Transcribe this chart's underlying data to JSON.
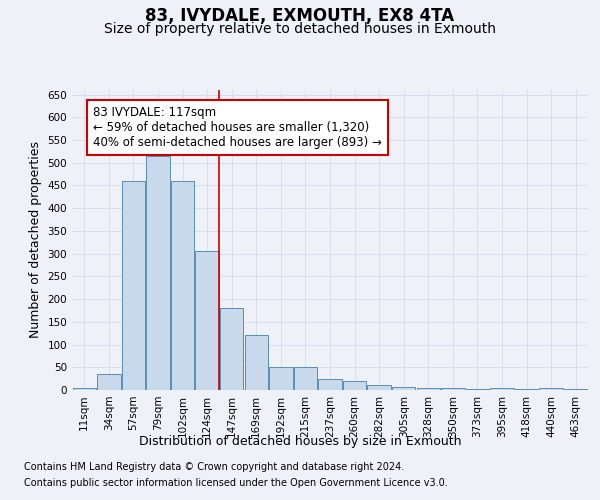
{
  "title": "83, IVYDALE, EXMOUTH, EX8 4TA",
  "subtitle": "Size of property relative to detached houses in Exmouth",
  "xlabel": "Distribution of detached houses by size in Exmouth",
  "ylabel": "Number of detached properties",
  "categories": [
    "11sqm",
    "34sqm",
    "57sqm",
    "79sqm",
    "102sqm",
    "124sqm",
    "147sqm",
    "169sqm",
    "192sqm",
    "215sqm",
    "237sqm",
    "260sqm",
    "282sqm",
    "305sqm",
    "328sqm",
    "350sqm",
    "373sqm",
    "395sqm",
    "418sqm",
    "440sqm",
    "463sqm"
  ],
  "values": [
    5,
    35,
    460,
    515,
    460,
    305,
    180,
    120,
    50,
    50,
    25,
    20,
    12,
    7,
    4,
    4,
    3,
    5,
    3,
    4,
    3
  ],
  "bar_color": "#c9d9ec",
  "bar_edge_color": "#5b8db8",
  "grid_color": "#d0d8e8",
  "background_color": "#eef2f8",
  "red_line_x": 5.5,
  "annotation_text": "83 IVYDALE: 117sqm\n← 59% of detached houses are smaller (1,320)\n40% of semi-detached houses are larger (893) →",
  "annotation_box_color": "#ffffff",
  "annotation_box_edge_color": "#cc0000",
  "ylim": [
    0,
    660
  ],
  "yticks": [
    0,
    50,
    100,
    150,
    200,
    250,
    300,
    350,
    400,
    450,
    500,
    550,
    600,
    650
  ],
  "footnote1": "Contains HM Land Registry data © Crown copyright and database right 2024.",
  "footnote2": "Contains public sector information licensed under the Open Government Licence v3.0.",
  "title_fontsize": 12,
  "subtitle_fontsize": 10,
  "label_fontsize": 9,
  "tick_fontsize": 7.5,
  "annotation_fontsize": 8.5,
  "footnote_fontsize": 7
}
